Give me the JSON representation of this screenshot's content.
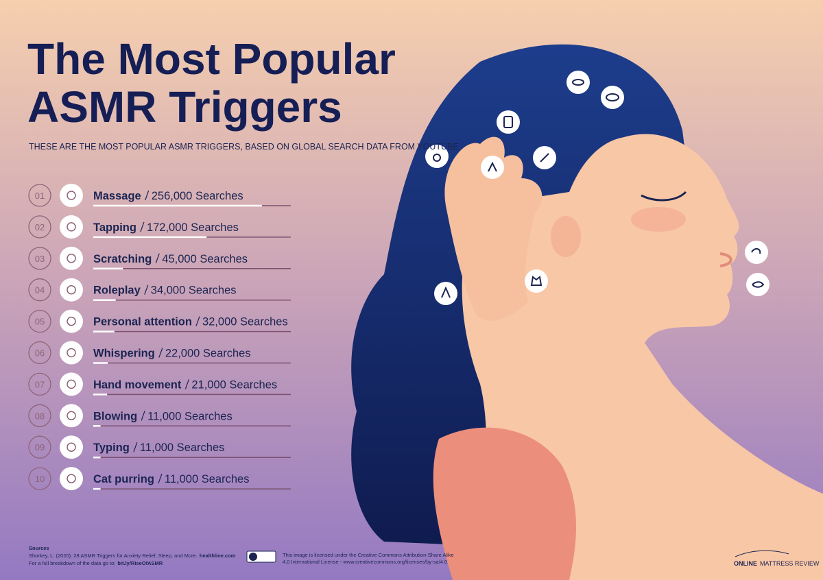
{
  "chart_data": {
    "type": "bar",
    "title": [
      "The Most Popular",
      "ASMR Triggers"
    ],
    "subtitle": "THESE ARE THE MOST POPULAR ASMR TRIGGERS, BASED ON GLOBAL SEARCH DATA FROM YOUTUBE.",
    "ranks": [
      "01",
      "02",
      "03",
      "04",
      "05",
      "06",
      "07",
      "08",
      "09",
      "10"
    ],
    "categories": [
      "Massage",
      "Tapping",
      "Scratching",
      "Roleplay",
      "Personal attention",
      "Whispering",
      "Hand movement",
      "Blowing",
      "Typing",
      "Cat purring"
    ],
    "values": [
      256000,
      172000,
      45000,
      34000,
      32000,
      22000,
      21000,
      11000,
      11000,
      11000
    ],
    "value_labels": [
      "256,000 Searches",
      "172,000 Searches",
      "45,000 Searches",
      "34,000 Searches",
      "32,000 Searches",
      "22,000 Searches",
      "21,000 Searches",
      "11,000 Searches",
      "11,000 Searches",
      "11,000 Searches"
    ],
    "xlim": [
      0,
      300000
    ],
    "color": "#ffffff",
    "sources": {
      "heading": "Sources",
      "citation": "Shorkey, L. (2020). 28 ASMR Triggers for Anxiety Relief, Sleep, and More.",
      "citation_link": "healthline.com",
      "breakdown": "For a full breakdown of the data go to:",
      "breakdown_link": "bit.ly/RiseOfASMR"
    },
    "license": [
      "This image is licensed under the Creative Commons Attribution-Share Alike",
      "4.0 International License - www.creativecommons.org/licenses/by-sa/4.0"
    ],
    "brand": [
      "ONLINE",
      "MATTRESS REVIEW"
    ]
  }
}
